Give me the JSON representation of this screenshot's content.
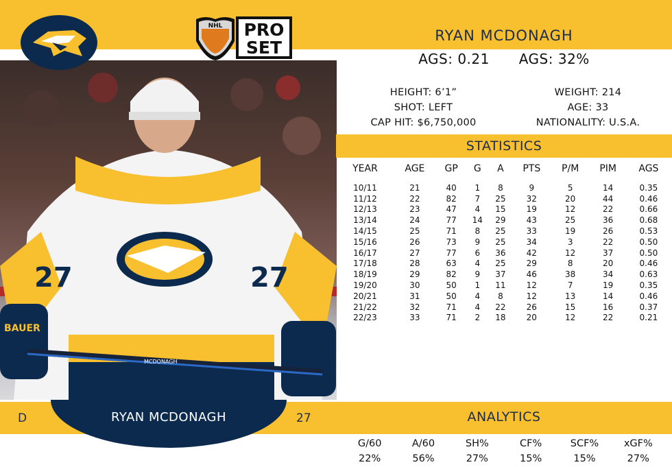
{
  "card": {
    "player_name": "RYAN MCDONAGH",
    "ags_value": "AGS: 0.21",
    "ags_percent": "AGS: 32%",
    "position": "D",
    "number": "27",
    "brand_logo_text": [
      "NHL",
      "PRO",
      "SET"
    ]
  },
  "bio": {
    "height": "HEIGHT: 6’1”",
    "shot": "SHOT: LEFT",
    "cap_hit": "CAP HIT: $6,750,000",
    "weight": "WEIGHT: 214",
    "age": "AGE: 33",
    "nationality": "NATIONALITY: U.S.A."
  },
  "statistics": {
    "title": "STATISTICS",
    "headers": [
      "YEAR",
      "AGE",
      "GP",
      "G",
      "A",
      "PTS",
      "P/M",
      "PIM",
      "AGS"
    ],
    "rows": [
      [
        "10/11",
        "21",
        "40",
        "1",
        "8",
        "9",
        "5",
        "14",
        "0.35"
      ],
      [
        "11/12",
        "22",
        "82",
        "7",
        "25",
        "32",
        "20",
        "44",
        "0.46"
      ],
      [
        "12/13",
        "23",
        "47",
        "4",
        "15",
        "19",
        "12",
        "22",
        "0.66"
      ],
      [
        "13/14",
        "24",
        "77",
        "14",
        "29",
        "43",
        "25",
        "36",
        "0.68"
      ],
      [
        "14/15",
        "25",
        "71",
        "8",
        "25",
        "33",
        "19",
        "26",
        "0.53"
      ],
      [
        "15/16",
        "26",
        "73",
        "9",
        "25",
        "34",
        "3",
        "22",
        "0.50"
      ],
      [
        "16/17",
        "27",
        "77",
        "6",
        "36",
        "42",
        "12",
        "37",
        "0.50"
      ],
      [
        "17/18",
        "28",
        "63",
        "4",
        "25",
        "29",
        "8",
        "20",
        "0.46"
      ],
      [
        "18/19",
        "29",
        "82",
        "9",
        "37",
        "46",
        "38",
        "34",
        "0.63"
      ],
      [
        "19/20",
        "30",
        "50",
        "1",
        "11",
        "12",
        "7",
        "19",
        "0.35"
      ],
      [
        "20/21",
        "31",
        "50",
        "4",
        "8",
        "12",
        "13",
        "14",
        "0.46"
      ],
      [
        "21/22",
        "32",
        "71",
        "4",
        "22",
        "26",
        "15",
        "16",
        "0.37"
      ],
      [
        "22/23",
        "33",
        "71",
        "2",
        "18",
        "20",
        "12",
        "22",
        "0.21"
      ]
    ]
  },
  "analytics": {
    "title": "ANALYTICS",
    "items": [
      {
        "label": "G/60",
        "value": "22%"
      },
      {
        "label": "A/60",
        "value": "56%"
      },
      {
        "label": "SH%",
        "value": "27%"
      },
      {
        "label": "CF%",
        "value": "15%"
      },
      {
        "label": "SCF%",
        "value": "15%"
      },
      {
        "label": "xGF%",
        "value": "27%"
      }
    ]
  },
  "jersey": {
    "number_text": "27",
    "stick_text": "MCDONAGH",
    "glove_brand": "BAUER"
  },
  "colors": {
    "gold": "#f8c02e",
    "navy": "#0b2a4d",
    "white": "#ffffff"
  },
  "icons": [
    "predators-logo",
    "nhl-pro-set-logo"
  ]
}
